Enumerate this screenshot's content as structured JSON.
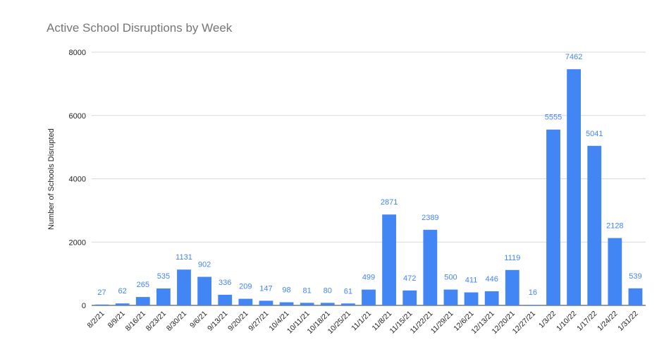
{
  "chart_data": {
    "type": "bar",
    "title": "Active School Disruptions by Week",
    "xlabel": "",
    "ylabel": "Number of Schools Disrupted",
    "ylim": [
      0,
      8000
    ],
    "yticks": [
      0,
      2000,
      4000,
      6000,
      8000
    ],
    "grid": true,
    "bar_color": "#4285f4",
    "label_color": "#4285f4",
    "categories": [
      "8/2/21",
      "8/9/21",
      "8/16/21",
      "8/23/21",
      "8/30/21",
      "9/6/21",
      "9/13/21",
      "9/20/21",
      "9/27/21",
      "10/4/21",
      "10/11/21",
      "10/18/21",
      "10/25/21",
      "11/1/21",
      "11/8/21",
      "11/15/21",
      "11/22/21",
      "11/29/21",
      "12/6/21",
      "12/13/21",
      "12/20/21",
      "12/27/21",
      "1/3/22",
      "1/10/22",
      "1/17/22",
      "1/24/22",
      "1/31/22"
    ],
    "values": [
      27,
      62,
      265,
      535,
      1131,
      902,
      336,
      209,
      147,
      98,
      81,
      80,
      61,
      499,
      2871,
      472,
      2389,
      500,
      411,
      446,
      1119,
      16,
      5555,
      7462,
      5041,
      2128,
      539
    ]
  }
}
